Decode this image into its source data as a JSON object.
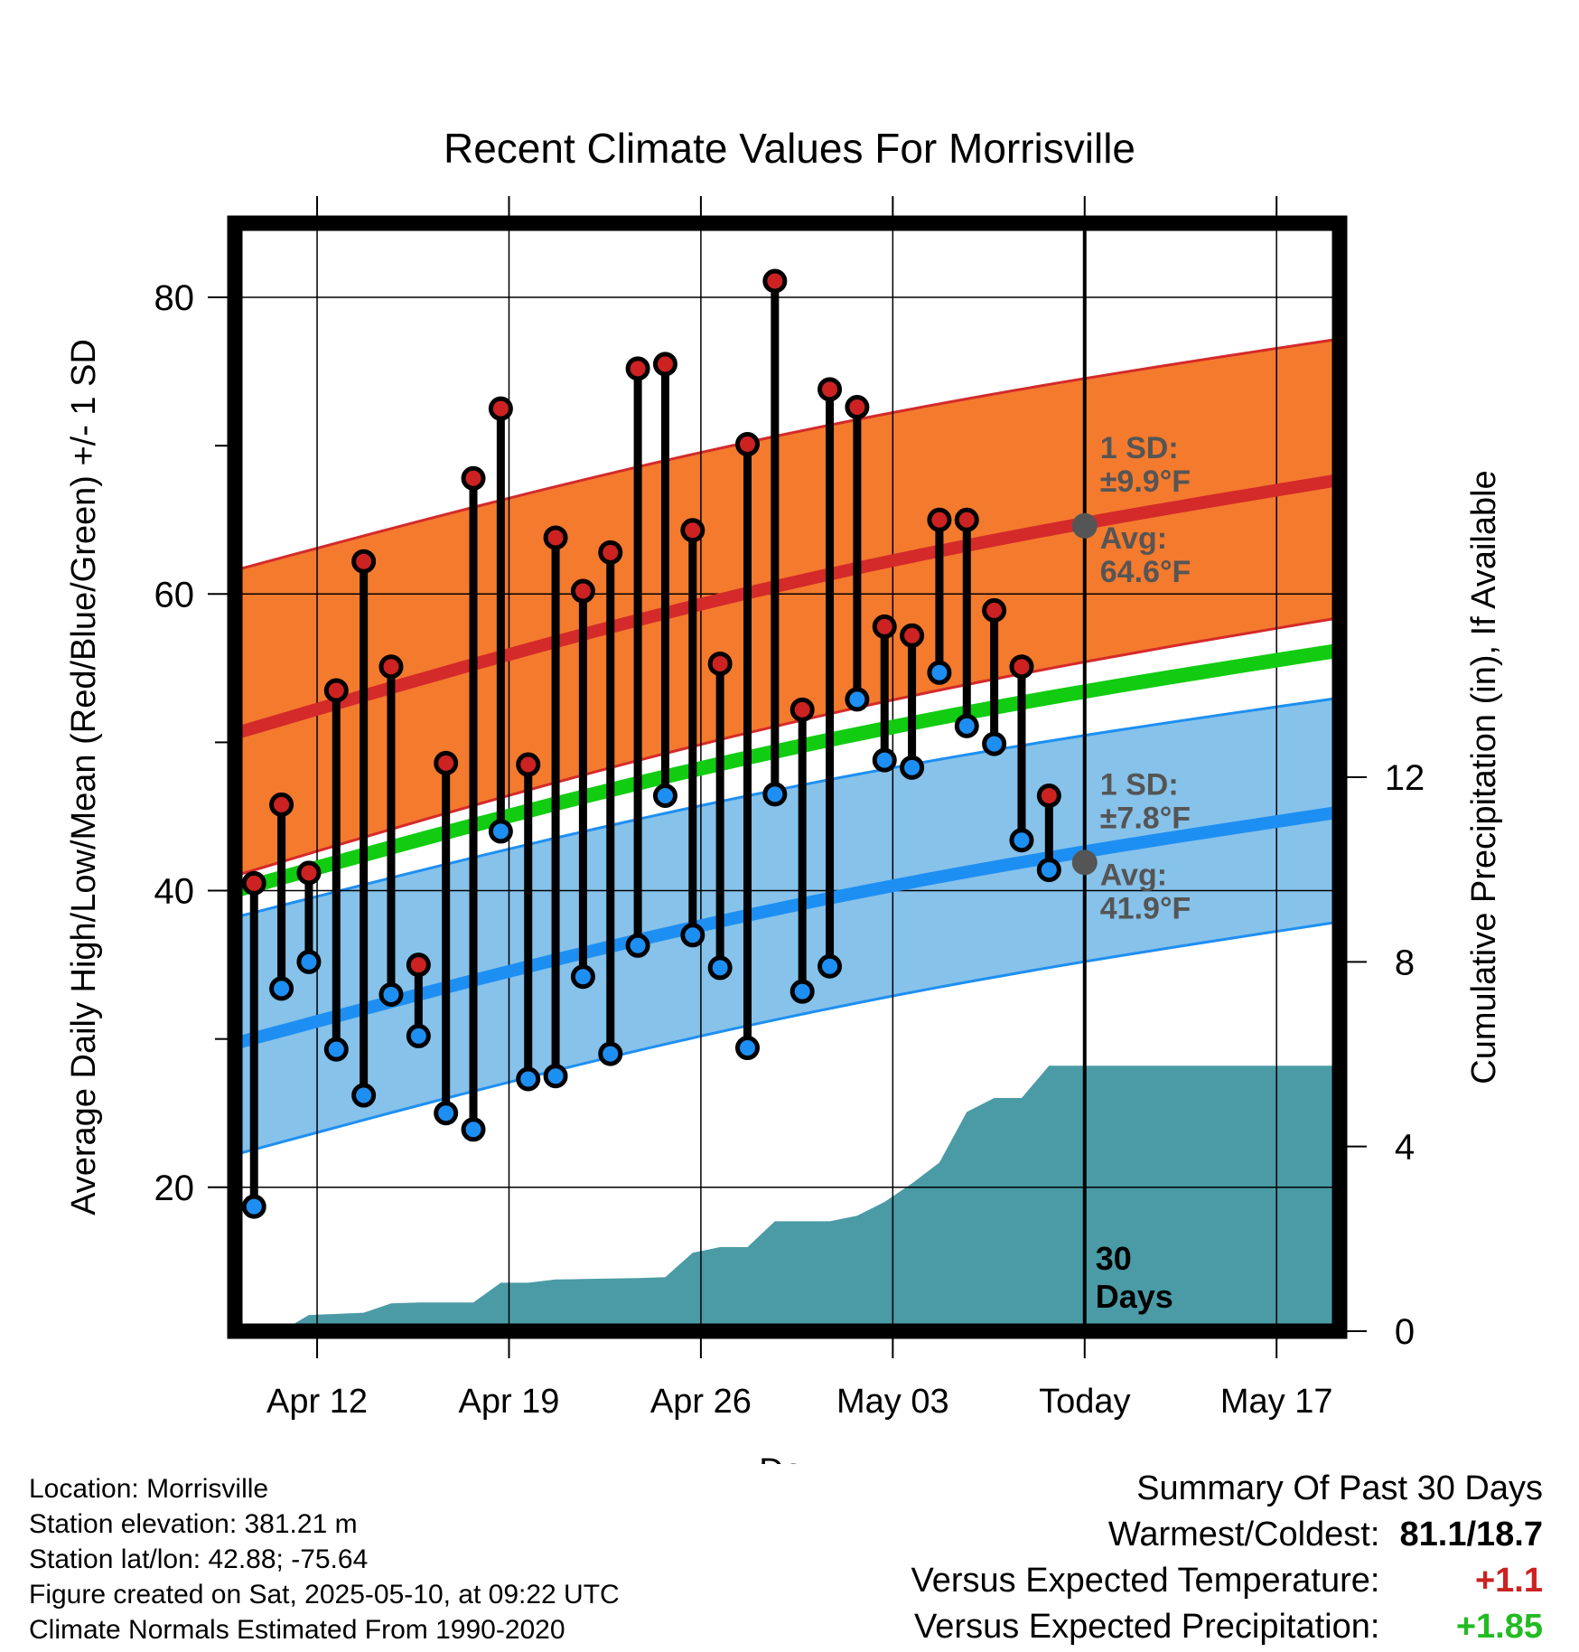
{
  "chart_data": {
    "type": "line",
    "title": "Recent Climate Values For Morrisville",
    "xlabel": "Day",
    "ylabel_left": "Average Daily High/Low/Mean (Red/Blue/Green) +/- 1 SD",
    "ylabel_right": "Cumulative Precipitation (in), If Available",
    "x_ticks": [
      {
        "day": 3,
        "label": "Apr 12"
      },
      {
        "day": 10,
        "label": "Apr 19"
      },
      {
        "day": 17,
        "label": "Apr 26"
      },
      {
        "day": 24,
        "label": "May 03"
      },
      {
        "day": 31,
        "label": "Today"
      },
      {
        "day": 38,
        "label": "May 17"
      }
    ],
    "x_range_days": [
      0,
      40.3
    ],
    "y_left_range": [
      10.3,
      85
    ],
    "y_left_ticks": [
      20,
      40,
      60,
      80
    ],
    "y_right_range": [
      0,
      24
    ],
    "y_right_ticks": [
      0,
      4,
      8,
      12
    ],
    "grid": true,
    "normals": {
      "high_mean": {
        "start": 50.6,
        "end": 67.7,
        "color": "#d42a2a"
      },
      "high_sd_upper": {
        "start": 61.6,
        "end": 77.2
      },
      "high_sd_lower": {
        "start": 41.0,
        "end": 58.4
      },
      "high_band_color": "#f47a2e",
      "mean": {
        "start": 40.0,
        "end": 56.2,
        "color": "#11cc11"
      },
      "low_mean": {
        "start": 29.7,
        "end": 45.3,
        "color": "#1e8ff2"
      },
      "low_sd_upper": {
        "start": 38.2,
        "end": 53.0
      },
      "low_sd_lower": {
        "start": 22.2,
        "end": 37.9
      },
      "low_band_color": "#86c2ea"
    },
    "daily": [
      {
        "day": 0.7,
        "high": 40.5,
        "low": 18.7
      },
      {
        "day": 1.7,
        "high": 45.8,
        "low": 33.4
      },
      {
        "day": 2.7,
        "high": 41.2,
        "low": 35.2
      },
      {
        "day": 3.7,
        "high": 53.5,
        "low": 29.3
      },
      {
        "day": 4.7,
        "high": 62.2,
        "low": 26.2
      },
      {
        "day": 5.7,
        "high": 55.1,
        "low": 33.0
      },
      {
        "day": 6.7,
        "high": 35.0,
        "low": 30.2
      },
      {
        "day": 7.7,
        "high": 48.6,
        "low": 25.0
      },
      {
        "day": 8.7,
        "high": 67.8,
        "low": 23.9
      },
      {
        "day": 9.7,
        "high": 72.5,
        "low": 44.0
      },
      {
        "day": 10.7,
        "high": 48.5,
        "low": 27.3
      },
      {
        "day": 11.7,
        "high": 63.8,
        "low": 27.5
      },
      {
        "day": 12.7,
        "high": 60.2,
        "low": 34.2
      },
      {
        "day": 13.7,
        "high": 62.8,
        "low": 29.0
      },
      {
        "day": 14.7,
        "high": 75.2,
        "low": 36.3
      },
      {
        "day": 15.7,
        "high": 75.5,
        "low": 46.4
      },
      {
        "day": 16.7,
        "high": 64.3,
        "low": 37.0
      },
      {
        "day": 17.7,
        "high": 55.3,
        "low": 34.8
      },
      {
        "day": 18.7,
        "high": 70.1,
        "low": 29.4
      },
      {
        "day": 19.7,
        "high": 81.1,
        "low": 46.5
      },
      {
        "day": 20.7,
        "high": 52.2,
        "low": 33.2
      },
      {
        "day": 21.7,
        "high": 73.8,
        "low": 34.9
      },
      {
        "day": 22.7,
        "high": 72.6,
        "low": 52.9
      },
      {
        "day": 23.7,
        "high": 57.8,
        "low": 48.8
      },
      {
        "day": 24.7,
        "high": 57.2,
        "low": 48.3
      },
      {
        "day": 25.7,
        "high": 65.0,
        "low": 54.7
      },
      {
        "day": 26.7,
        "high": 65.0,
        "low": 51.1
      },
      {
        "day": 27.7,
        "high": 58.9,
        "low": 49.9
      },
      {
        "day": 28.7,
        "high": 55.1,
        "low": 43.4
      },
      {
        "day": 29.7,
        "high": 46.4,
        "low": 41.4
      }
    ],
    "precip_cumulative": {
      "color": "#4a9ba5",
      "points": [
        [
          0.0,
          0.0
        ],
        [
          1.7,
          0.0
        ],
        [
          2.7,
          0.35
        ],
        [
          4.7,
          0.4
        ],
        [
          5.7,
          0.6
        ],
        [
          6.7,
          0.62
        ],
        [
          8.7,
          0.62
        ],
        [
          9.7,
          1.05
        ],
        [
          10.7,
          1.05
        ],
        [
          11.7,
          1.12
        ],
        [
          12.7,
          1.13
        ],
        [
          14.7,
          1.15
        ],
        [
          15.7,
          1.17
        ],
        [
          16.7,
          1.7
        ],
        [
          17.7,
          1.82
        ],
        [
          18.7,
          1.82
        ],
        [
          19.7,
          2.38
        ],
        [
          20.7,
          2.38
        ],
        [
          21.7,
          2.38
        ],
        [
          22.7,
          2.5
        ],
        [
          23.7,
          2.8
        ],
        [
          24.7,
          3.2
        ],
        [
          25.7,
          3.65
        ],
        [
          26.7,
          4.75
        ],
        [
          27.7,
          5.05
        ],
        [
          28.7,
          5.05
        ],
        [
          29.7,
          5.75
        ],
        [
          40.3,
          5.75
        ]
      ]
    },
    "today_marker": {
      "day": 31,
      "label_line1": "30",
      "label_line2": "Days"
    },
    "annotations": {
      "high": {
        "sd_label": "1 SD:",
        "sd_value": "±9.9°F",
        "avg_label": "Avg:",
        "avg_value": "64.6°F",
        "avg": 64.6
      },
      "low": {
        "sd_label": "1 SD:",
        "sd_value": "±7.8°F",
        "avg_label": "Avg:",
        "avg_value": "41.9°F",
        "avg": 41.9
      }
    }
  },
  "footer": {
    "location": "Location: Morrisville",
    "elevation": "Station elevation: 381.21 m",
    "latlon": "Station lat/lon: 42.88; -75.64",
    "created": "Figure created on Sat, 2025-05-10, at 09:22 UTC",
    "normals": "Climate Normals Estimated From 1990-2020"
  },
  "summary": {
    "title": "Summary Of Past 30 Days",
    "warmest_label": "Warmest/Coldest:",
    "warmest_value": "81.1/18.7",
    "temp_label": "Versus Expected Temperature:",
    "temp_value": "+1.1",
    "precip_label": "Versus Expected Precipitation:",
    "precip_value": "+1.85"
  }
}
